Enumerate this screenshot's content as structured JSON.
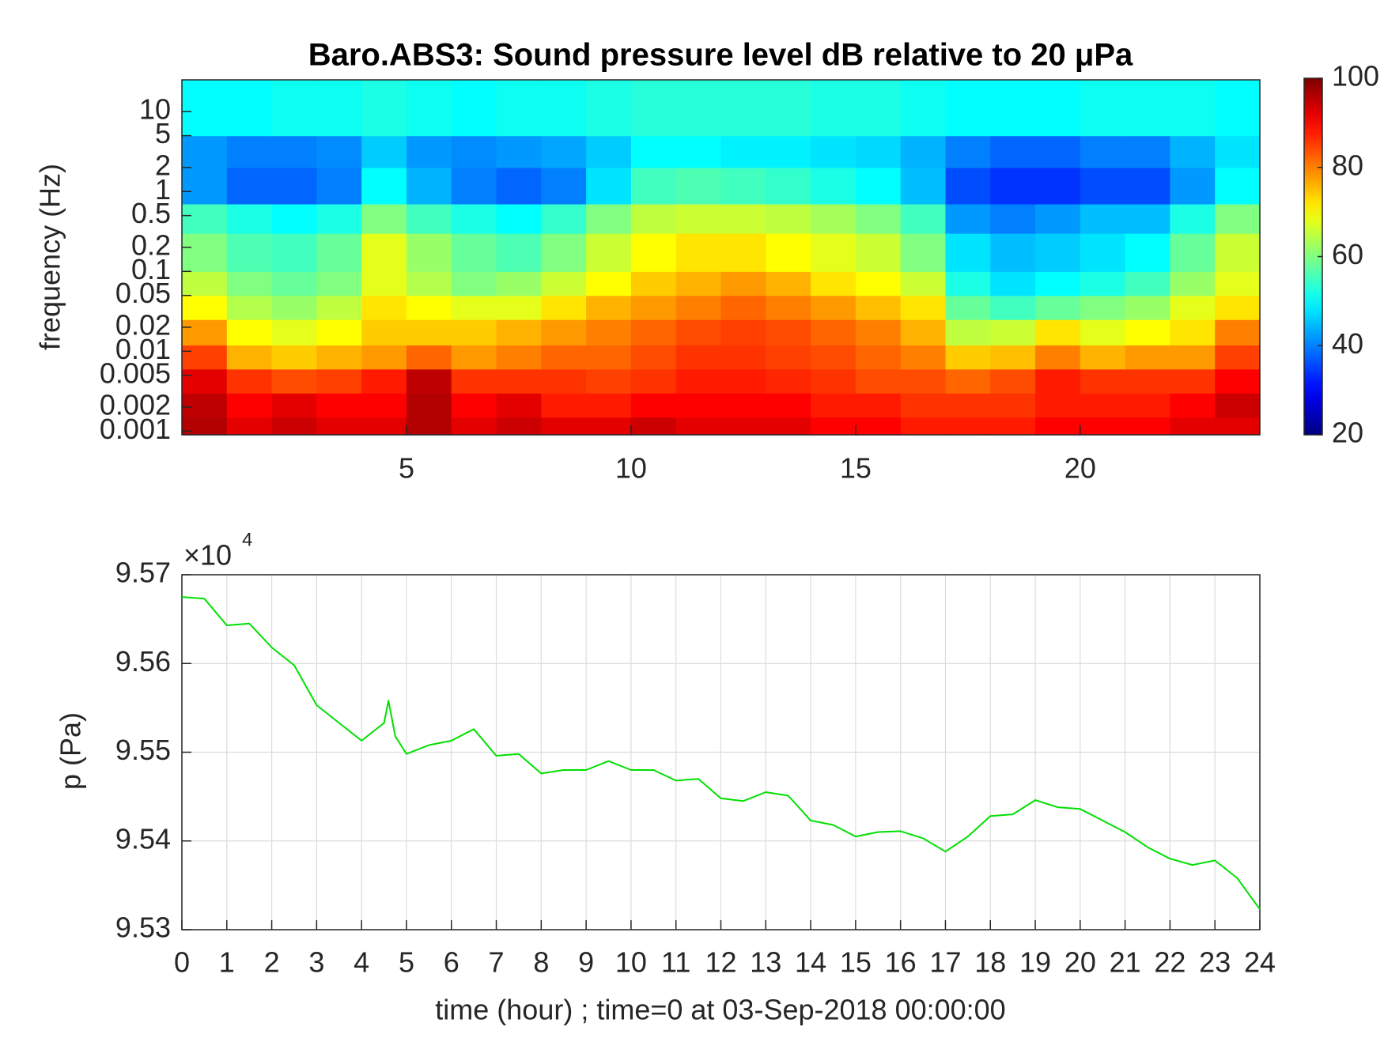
{
  "chart_data": [
    {
      "type": "heatmap",
      "title": "Baro.ABS3: Sound pressure level dB relative to 20 μPa",
      "ylabel": "frequency (Hz)",
      "log_y": true,
      "xlim": [
        0,
        24
      ],
      "xticks": [
        5,
        10,
        15,
        20
      ],
      "ylim": [
        0.0009,
        25
      ],
      "yticks": [
        0.001,
        0.002,
        0.005,
        0.01,
        0.02,
        0.05,
        0.1,
        0.2,
        0.5,
        1,
        2,
        5,
        10
      ],
      "x_bins": [
        0,
        1,
        2,
        3,
        4,
        5,
        6,
        7,
        8,
        9,
        10,
        11,
        12,
        13,
        14,
        15,
        16,
        17,
        18,
        19,
        20,
        21,
        22,
        23,
        24
      ],
      "y_bins": [
        0.0009,
        0.0015,
        0.003,
        0.006,
        0.012,
        0.025,
        0.05,
        0.1,
        0.3,
        0.7,
        2,
        5,
        25
      ],
      "values": [
        [
          96,
          92,
          94,
          92,
          92,
          96,
          92,
          94,
          92,
          92,
          94,
          92,
          92,
          92,
          90,
          90,
          88,
          88,
          88,
          90,
          90,
          90,
          92,
          92
        ],
        [
          95,
          90,
          92,
          90,
          90,
          96,
          90,
          92,
          88,
          88,
          90,
          90,
          90,
          90,
          88,
          88,
          86,
          86,
          86,
          88,
          88,
          88,
          90,
          94
        ],
        [
          92,
          86,
          84,
          85,
          88,
          95,
          86,
          86,
          86,
          85,
          86,
          88,
          88,
          87,
          86,
          84,
          84,
          82,
          84,
          88,
          86,
          86,
          86,
          90
        ],
        [
          85,
          76,
          74,
          76,
          78,
          82,
          78,
          80,
          82,
          82,
          84,
          86,
          86,
          85,
          84,
          82,
          80,
          74,
          75,
          80,
          76,
          78,
          78,
          85
        ],
        [
          78,
          70,
          68,
          70,
          74,
          74,
          74,
          76,
          78,
          80,
          82,
          84,
          85,
          84,
          82,
          80,
          76,
          65,
          66,
          72,
          68,
          70,
          72,
          80
        ],
        [
          70,
          64,
          62,
          65,
          72,
          70,
          68,
          68,
          72,
          76,
          78,
          80,
          82,
          80,
          78,
          75,
          72,
          58,
          55,
          58,
          60,
          62,
          68,
          72
        ],
        [
          65,
          60,
          58,
          60,
          68,
          64,
          60,
          62,
          66,
          70,
          74,
          76,
          78,
          76,
          72,
          70,
          66,
          52,
          48,
          50,
          52,
          55,
          62,
          68
        ],
        [
          60,
          56,
          55,
          58,
          68,
          62,
          58,
          56,
          60,
          66,
          70,
          72,
          72,
          70,
          68,
          66,
          60,
          48,
          45,
          46,
          48,
          50,
          58,
          66
        ],
        [
          55,
          52,
          50,
          52,
          60,
          55,
          52,
          50,
          54,
          60,
          65,
          66,
          66,
          65,
          63,
          60,
          55,
          42,
          40,
          42,
          45,
          45,
          52,
          60
        ],
        [
          42,
          38,
          38,
          40,
          50,
          44,
          40,
          38,
          40,
          48,
          55,
          56,
          55,
          54,
          52,
          50,
          45,
          36,
          34,
          34,
          36,
          36,
          42,
          50
        ],
        [
          42,
          40,
          40,
          41,
          46,
          42,
          41,
          42,
          43,
          46,
          50,
          50,
          49,
          49,
          48,
          47,
          44,
          40,
          38,
          38,
          40,
          40,
          44,
          48
        ],
        [
          50,
          50,
          51,
          51,
          52,
          51,
          50,
          51,
          51,
          52,
          53,
          53,
          53,
          53,
          52,
          52,
          51,
          50,
          50,
          50,
          51,
          51,
          51,
          50
        ]
      ],
      "colorbar": {
        "colormap": "jet",
        "clim": [
          20,
          100
        ],
        "ticks": [
          20,
          40,
          60,
          80,
          100
        ]
      }
    },
    {
      "type": "line",
      "xlabel": "time (hour) ; time=0 at 03-Sep-2018 00:00:00",
      "ylabel": "p (Pa)",
      "color": "#00e000",
      "grid": true,
      "xlim": [
        0,
        24
      ],
      "xticks": [
        0,
        1,
        2,
        3,
        4,
        5,
        6,
        7,
        8,
        9,
        10,
        11,
        12,
        13,
        14,
        15,
        16,
        17,
        18,
        19,
        20,
        21,
        22,
        23,
        24
      ],
      "ylim": [
        95300,
        95700
      ],
      "yticks": [
        {
          "value": 95300,
          "label": "9.53"
        },
        {
          "value": 95400,
          "label": "9.54"
        },
        {
          "value": 95500,
          "label": "9.55"
        },
        {
          "value": 95600,
          "label": "9.56"
        },
        {
          "value": 95700,
          "label": "9.57"
        }
      ],
      "y_exponent": {
        "base": "×10",
        "power": "4"
      },
      "x": [
        0,
        0.5,
        1,
        1.5,
        2,
        2.5,
        3,
        3.5,
        4,
        4.5,
        4.6,
        4.75,
        5,
        5.5,
        6,
        6.5,
        7,
        7.5,
        8,
        8.5,
        9,
        9.5,
        10,
        10.5,
        11,
        11.5,
        12,
        12.5,
        13,
        13.5,
        14,
        14.5,
        15,
        15.5,
        16,
        16.5,
        17,
        17.5,
        18,
        18.5,
        19,
        19.5,
        20,
        20.5,
        21,
        21.5,
        22,
        22.5,
        23,
        23.5,
        24
      ],
      "values": [
        95675,
        95673,
        95643,
        95645,
        95618,
        95598,
        95553,
        95533,
        95513,
        95533,
        95558,
        95518,
        95498,
        95508,
        95513,
        95526,
        95496,
        95498,
        95476,
        95480,
        95480,
        95490,
        95480,
        95480,
        95468,
        95470,
        95448,
        95445,
        95455,
        95451,
        95423,
        95418,
        95405,
        95410,
        95411,
        95403,
        95388,
        95405,
        95428,
        95430,
        95446,
        95438,
        95436,
        95423,
        95410,
        95393,
        95380,
        95373,
        95378,
        95358,
        95323
      ]
    }
  ]
}
